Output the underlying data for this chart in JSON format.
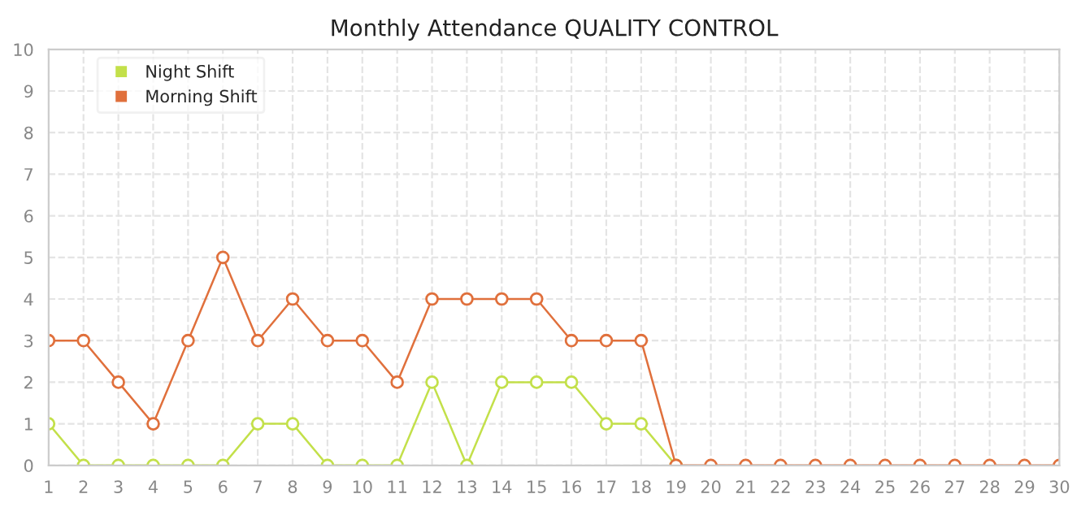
{
  "chart_data": {
    "type": "line",
    "title": "Monthly Attendance QUALITY CONTROL",
    "x": [
      1,
      2,
      3,
      4,
      5,
      6,
      7,
      8,
      9,
      10,
      11,
      12,
      13,
      14,
      15,
      16,
      17,
      18,
      19,
      20,
      21,
      22,
      23,
      24,
      25,
      26,
      27,
      28,
      29,
      30
    ],
    "series": [
      {
        "name": "Night Shift",
        "color": "#c3e04a",
        "values": [
          1,
          0,
          0,
          0,
          0,
          0,
          1,
          1,
          0,
          0,
          0,
          2,
          0,
          2,
          2,
          2,
          1,
          1,
          0,
          null,
          null,
          null,
          null,
          null,
          null,
          null,
          null,
          null,
          null,
          null
        ]
      },
      {
        "name": "Morning Shift",
        "color": "#e0703c",
        "values": [
          3,
          3,
          2,
          1,
          3,
          5,
          3,
          4,
          3,
          3,
          2,
          4,
          4,
          4,
          4,
          3,
          3,
          3,
          0,
          0,
          0,
          0,
          0,
          0,
          0,
          0,
          0,
          0,
          0,
          0
        ]
      }
    ],
    "xlim": [
      1,
      30
    ],
    "xticks": [
      1,
      2,
      3,
      4,
      5,
      6,
      7,
      8,
      9,
      10,
      11,
      12,
      13,
      14,
      15,
      16,
      17,
      18,
      19,
      20,
      21,
      22,
      23,
      24,
      25,
      26,
      27,
      28,
      29,
      30
    ],
    "ylim": [
      0,
      10
    ],
    "yticks": [
      0,
      1,
      2,
      3,
      4,
      5,
      6,
      7,
      8,
      9,
      10
    ],
    "grid": true,
    "legend": "top left",
    "marker": "circle",
    "line_style": "solid"
  }
}
